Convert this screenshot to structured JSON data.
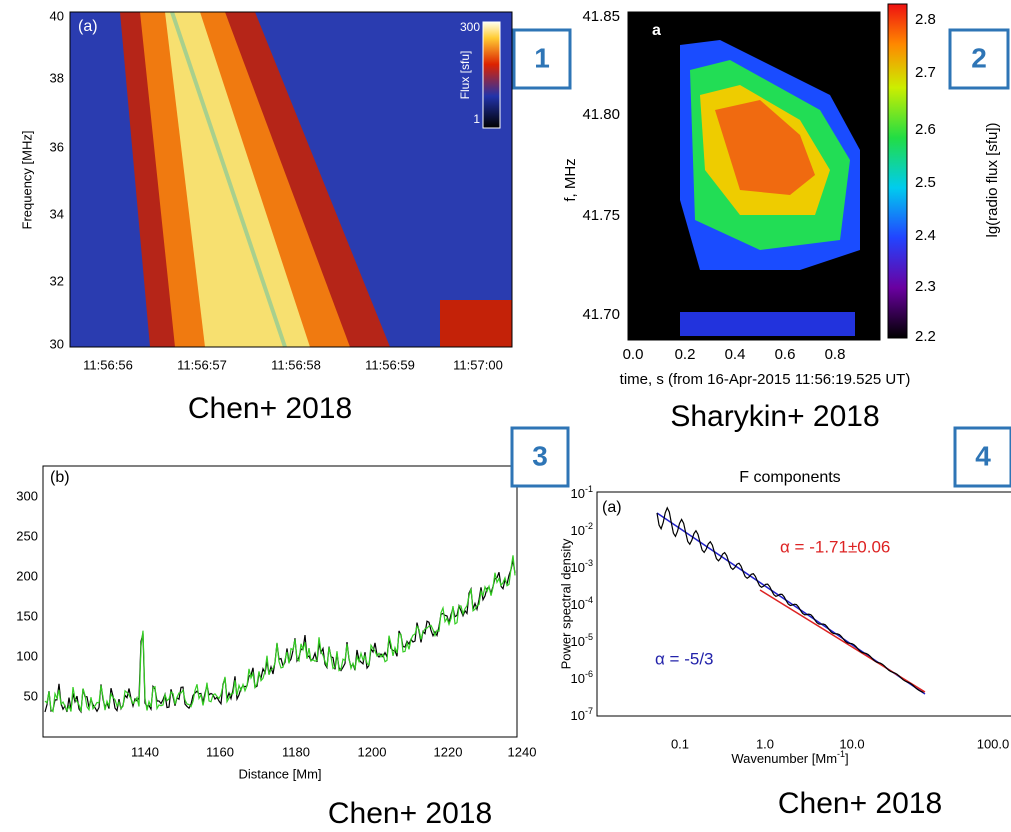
{
  "panels": [
    {
      "badge": "1",
      "caption": "Chen+ 2018",
      "label": "(a)",
      "ylabel": "Frequency [MHz]",
      "yticks": [
        "40",
        "38",
        "36",
        "34",
        "32",
        "30"
      ],
      "xticks": [
        "11:56:56",
        "11:56:57",
        "11:56:58",
        "11:56:59",
        "11:57:00"
      ],
      "colorbar_label": "Flux [sfu]",
      "colorbar_ticks": [
        "300",
        "1"
      ]
    },
    {
      "badge": "2",
      "caption": "Sharykin+ 2018",
      "label": "a",
      "ylabel": "f, MHz",
      "yticks": [
        "41.85",
        "41.80",
        "41.75",
        "41.70"
      ],
      "xticks": [
        "0.0",
        "0.2",
        "0.4",
        "0.6",
        "0.8"
      ],
      "xlabel": "time, s (from 16-Apr-2015 11:56:19.525 UT)",
      "colorbar_label": "lg(radio flux [sfu])",
      "colorbar_ticks": [
        "2.8",
        "2.7",
        "2.6",
        "2.5",
        "2.4",
        "2.3",
        "2.2"
      ]
    },
    {
      "badge": "3",
      "caption": "Chen+ 2018",
      "label": "(b)",
      "yticks": [
        "300",
        "250",
        "200",
        "150",
        "100",
        "50"
      ],
      "xticks": [
        "1140",
        "1160",
        "1180",
        "1200",
        "1220",
        "1240"
      ],
      "xlabel": "Distance [Mm]"
    },
    {
      "badge": "4",
      "caption": "Chen+ 2018",
      "label": "(a)",
      "title": "F components",
      "ylabel": "Power spectral density",
      "yticks": [
        {
          "base": "10",
          "exp": "-1"
        },
        {
          "base": "10",
          "exp": "-2"
        },
        {
          "base": "10",
          "exp": "-3"
        },
        {
          "base": "10",
          "exp": "-4"
        },
        {
          "base": "10",
          "exp": "-5"
        },
        {
          "base": "10",
          "exp": "-6"
        },
        {
          "base": "10",
          "exp": "-7"
        }
      ],
      "xticks": [
        "0.1",
        "1.0",
        "10.0",
        "100.0"
      ],
      "xlabel": "Wavenumber [Mm",
      "xlabel_exp": "-1",
      "xlabel_end": "]",
      "annotations": [
        "α = -1.71±0.06",
        "α = -5/3"
      ]
    }
  ]
}
